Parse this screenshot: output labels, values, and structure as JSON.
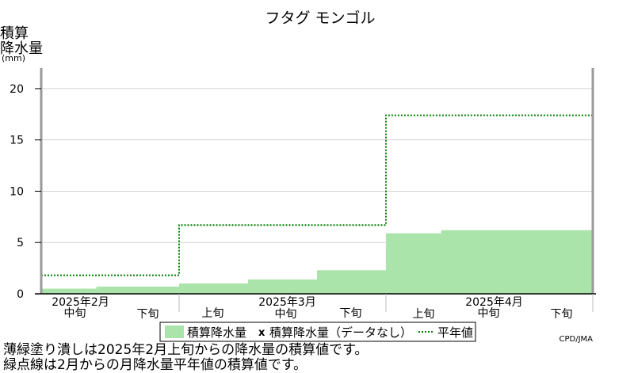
{
  "chart_data": {
    "type": "area",
    "title": "フタグ モンゴル",
    "ylabel_lines": [
      "積算",
      "降水量",
      "(mm)"
    ],
    "ylim": [
      0,
      22
    ],
    "yticks": [
      0,
      5,
      10,
      15,
      20
    ],
    "periods": [
      "2月中旬",
      "2月下旬",
      "3月上旬",
      "3月中旬",
      "3月下旬",
      "4月上旬",
      "4月中旬",
      "4月下旬"
    ],
    "x_tick_labels": [
      "中旬",
      "下旬",
      "上旬",
      "中旬",
      "下旬",
      "上旬",
      "中旬",
      "下旬"
    ],
    "month_labels": [
      "2025年2月",
      "2025年3月",
      "2025年4月"
    ],
    "series": [
      {
        "name": "積算降水量",
        "kind": "step-area",
        "color": "#aae4aa",
        "points": [
          {
            "day": 0,
            "value": 0.5
          },
          {
            "day": 4,
            "value": 0.5
          },
          {
            "day": 4,
            "value": 0.7
          },
          {
            "day": 10,
            "value": 0.7
          },
          {
            "day": 10,
            "value": 1.0
          },
          {
            "day": 15,
            "value": 1.0
          },
          {
            "day": 15,
            "value": 1.4
          },
          {
            "day": 20,
            "value": 1.4
          },
          {
            "day": 20,
            "value": 2.3
          },
          {
            "day": 25,
            "value": 2.3
          },
          {
            "day": 25,
            "value": 5.9
          },
          {
            "day": 29,
            "value": 5.9
          },
          {
            "day": 29,
            "value": 6.2
          },
          {
            "day": 40,
            "value": 6.2
          }
        ]
      },
      {
        "name": "平年値",
        "kind": "dotted-step",
        "color": "#008000",
        "points": [
          {
            "day": 0,
            "value": 1.8
          },
          {
            "day": 10,
            "value": 1.8
          },
          {
            "day": 10,
            "value": 6.7
          },
          {
            "day": 25,
            "value": 6.7
          },
          {
            "day": 25,
            "value": 17.4
          },
          {
            "day": 40,
            "value": 17.4
          }
        ]
      }
    ],
    "legend": {
      "area_label": "積算降水量",
      "missing_mark": "x",
      "missing_label": "積算降水量（データなし）",
      "normal_label": "平年値",
      "colors": {
        "area": "#aae4aa",
        "normal": "#008000",
        "missing": "#000000"
      }
    },
    "source": "CPD/JMA"
  },
  "notes": [
    "薄緑塗り潰しは2025年2月上旬からの降水量の積算値です。",
    "緑点線は2月からの月降水量平年値の積算値です。"
  ]
}
